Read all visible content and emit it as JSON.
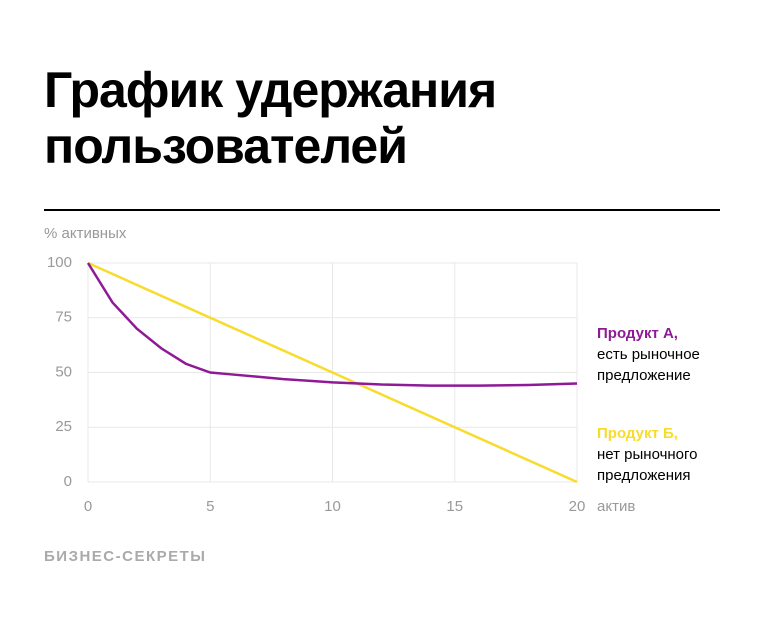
{
  "chart_data": {
    "type": "line",
    "title": "График удержания пользователей",
    "ylabel": "% активных",
    "xlabel": "актив",
    "footer": "БИЗНЕС-СЕКРЕТЫ",
    "xlim": [
      0,
      20
    ],
    "xticks": [
      0,
      5,
      10,
      15,
      20
    ],
    "ylim": [
      0,
      100
    ],
    "yticks": [
      0,
      25,
      50,
      75,
      100
    ],
    "grid": true,
    "series": [
      {
        "name": "Продукт А,",
        "note": [
          "есть рыночное",
          "предложение"
        ],
        "color": "#8e1a96",
        "x": [
          0,
          1,
          2,
          3,
          4,
          5,
          6,
          8,
          10,
          12,
          14,
          16,
          18,
          20
        ],
        "values": [
          100,
          82,
          70,
          61,
          54,
          50,
          49,
          47,
          45.5,
          44.5,
          44,
          44,
          44.3,
          45
        ]
      },
      {
        "name": "Продукт Б,",
        "note": [
          "нет рыночного",
          "предложения"
        ],
        "color": "#f7dc2e",
        "x": [
          0,
          20
        ],
        "values": [
          100,
          0
        ]
      }
    ]
  }
}
